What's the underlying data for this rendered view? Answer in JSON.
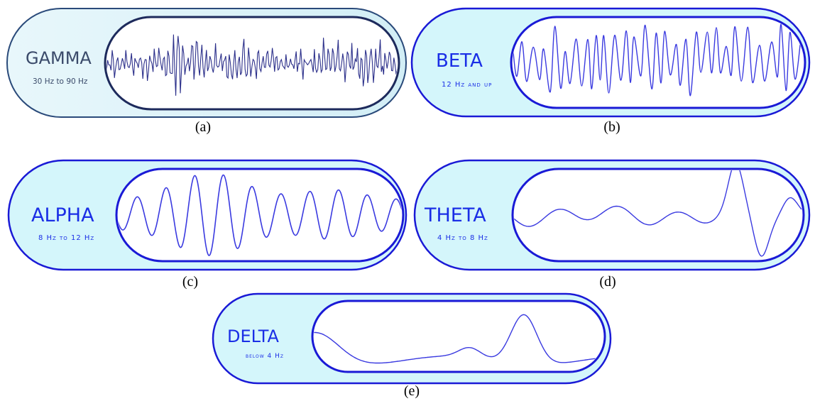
{
  "panels": [
    {
      "id": "a",
      "name": "GAMMA",
      "range": "30 Hz to 90 Hz",
      "caption": "(a)",
      "style": "gray",
      "smallcaps": false,
      "name_color": "#3a4a6a",
      "range_color": "#3a4a6a",
      "wave_color": "#2b2f8a",
      "border_color": "#1d2a5c"
    },
    {
      "id": "b",
      "name": "BETA",
      "range": "12 Hz and up",
      "caption": "(b)",
      "style": "blue",
      "smallcaps": true,
      "name_color": "#1a2ee6",
      "range_color": "#1a2ee6",
      "wave_color": "#3a3ae0",
      "border_color": "#1a1ad6"
    },
    {
      "id": "c",
      "name": "ALPHA",
      "range": "8 Hz to 12 Hz",
      "caption": "(c)",
      "style": "blue",
      "smallcaps": true,
      "name_color": "#1a2ee6",
      "range_color": "#1a2ee6",
      "wave_color": "#3a3ae0",
      "border_color": "#1a1ad6"
    },
    {
      "id": "d",
      "name": "THETA",
      "range": "4 Hz to 8 Hz",
      "caption": "(d)",
      "style": "blue",
      "smallcaps": true,
      "name_color": "#1a2ee6",
      "range_color": "#1a2ee6",
      "wave_color": "#3a3ae0",
      "border_color": "#1a1ad6"
    },
    {
      "id": "e",
      "name": "DELTA",
      "range": "below 4 Hz",
      "caption": "(e)",
      "style": "blue",
      "smallcaps": true,
      "name_color": "#1a2ee6",
      "range_color": "#1a2ee6",
      "wave_color": "#3a3ae0",
      "border_color": "#1a1ad6"
    }
  ],
  "colors": {
    "panel_fill": "#d4f6fb",
    "window_fill": "#ffffff"
  }
}
